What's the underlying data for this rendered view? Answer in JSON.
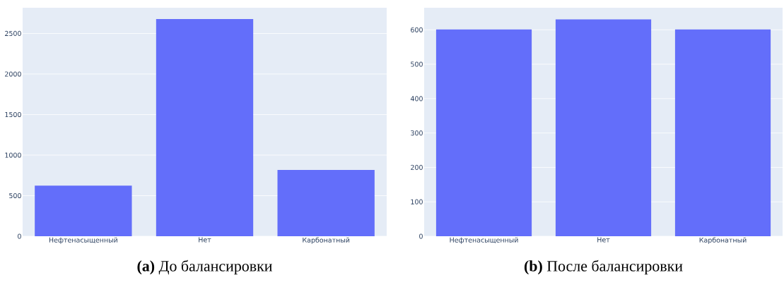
{
  "chart_data": [
    {
      "type": "bar",
      "title": "**(a)** До балансировки",
      "categories": [
        "Нефтенасыщенный",
        "Нет",
        "Карбонатный"
      ],
      "values": [
        624,
        2677,
        817
      ],
      "color": "#636efa",
      "ylim": [
        0,
        2817
      ],
      "yticks": [
        0,
        500,
        1000,
        1500,
        2000,
        2500
      ],
      "grid": "y"
    },
    {
      "type": "bar",
      "title": "**(b)** После балансировки",
      "categories": [
        "Нефтенасыщенный",
        "Нет",
        "Карбонатный"
      ],
      "values": [
        601,
        630,
        601
      ],
      "color": "#636efa",
      "ylim": [
        0,
        664
      ],
      "yticks": [
        0,
        100,
        200,
        300,
        400,
        500,
        600
      ],
      "grid": "y"
    }
  ]
}
